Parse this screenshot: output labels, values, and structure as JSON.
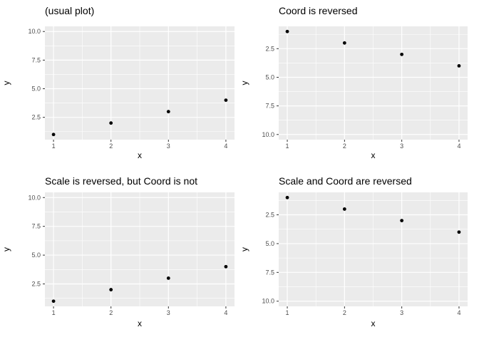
{
  "figure": {
    "background": "#ffffff",
    "panel_bg": "#ebebeb",
    "grid_color": "#ffffff",
    "point_color": "#000000",
    "tick_color": "#333333",
    "tick_label_color": "#4d4d4d",
    "text_color": "#000000"
  },
  "chart_data": [
    {
      "type": "scatter",
      "title": "(usual plot)",
      "xlabel": "x",
      "ylabel": "y",
      "x": [
        1,
        2,
        3,
        4
      ],
      "y": [
        1,
        2,
        3,
        4
      ],
      "x_tick_values": [
        1,
        2,
        3,
        4
      ],
      "x_ticks": [
        "1",
        "2",
        "3",
        "4"
      ],
      "y_tick_values": [
        2.5,
        5.0,
        7.5,
        10.0
      ],
      "y_ticks": [
        "2.5",
        "5.0",
        "7.5",
        "10.0"
      ],
      "x_minor": [
        1.5,
        2.5,
        3.5
      ],
      "y_minor": [
        1.25,
        3.75,
        6.25,
        8.75
      ],
      "xlim": [
        0.85,
        4.15
      ],
      "ylim": [
        0.55,
        10.45
      ],
      "y_axis_direction": "up",
      "grid": true,
      "legend": false
    },
    {
      "type": "scatter",
      "title": "Coord is reversed",
      "xlabel": "x",
      "ylabel": "y",
      "x": [
        1,
        2,
        3,
        4
      ],
      "y": [
        1,
        2,
        3,
        4
      ],
      "x_tick_values": [
        1,
        2,
        3,
        4
      ],
      "x_ticks": [
        "1",
        "2",
        "3",
        "4"
      ],
      "y_tick_values": [
        2.5,
        5.0,
        7.5,
        10.0
      ],
      "y_ticks": [
        "2.5",
        "5.0",
        "7.5",
        "10.0"
      ],
      "x_minor": [
        1.5,
        2.5,
        3.5
      ],
      "y_minor": [
        1.25,
        3.75,
        6.25,
        8.75
      ],
      "xlim": [
        0.85,
        4.15
      ],
      "ylim": [
        0.55,
        10.45
      ],
      "y_axis_direction": "down",
      "grid": true,
      "legend": false
    },
    {
      "type": "scatter",
      "title": "Scale is reversed, but Coord is not",
      "xlabel": "x",
      "ylabel": "y",
      "x": [
        1,
        2,
        3,
        4
      ],
      "y": [
        1,
        2,
        3,
        4
      ],
      "x_tick_values": [
        1,
        2,
        3,
        4
      ],
      "x_ticks": [
        "1",
        "2",
        "3",
        "4"
      ],
      "y_tick_values": [
        2.5,
        5.0,
        7.5,
        10.0
      ],
      "y_ticks": [
        "2.5",
        "5.0",
        "7.5",
        "10.0"
      ],
      "x_minor": [
        1.5,
        2.5,
        3.5
      ],
      "y_minor": [
        1.25,
        3.75,
        6.25,
        8.75
      ],
      "xlim": [
        0.85,
        4.15
      ],
      "ylim": [
        0.55,
        10.45
      ],
      "y_axis_direction": "up",
      "grid": true,
      "legend": false
    },
    {
      "type": "scatter",
      "title": "Scale and Coord are reversed",
      "xlabel": "x",
      "ylabel": "y",
      "x": [
        1,
        2,
        3,
        4
      ],
      "y": [
        1,
        2,
        3,
        4
      ],
      "x_tick_values": [
        1,
        2,
        3,
        4
      ],
      "x_ticks": [
        "1",
        "2",
        "3",
        "4"
      ],
      "y_tick_values": [
        2.5,
        5.0,
        7.5,
        10.0
      ],
      "y_ticks": [
        "2.5",
        "5.0",
        "7.5",
        "10.0"
      ],
      "x_minor": [
        1.5,
        2.5,
        3.5
      ],
      "y_minor": [
        1.25,
        3.75,
        6.25,
        8.75
      ],
      "xlim": [
        0.85,
        4.15
      ],
      "ylim": [
        0.55,
        10.45
      ],
      "y_axis_direction": "down",
      "grid": true,
      "legend": false
    }
  ]
}
